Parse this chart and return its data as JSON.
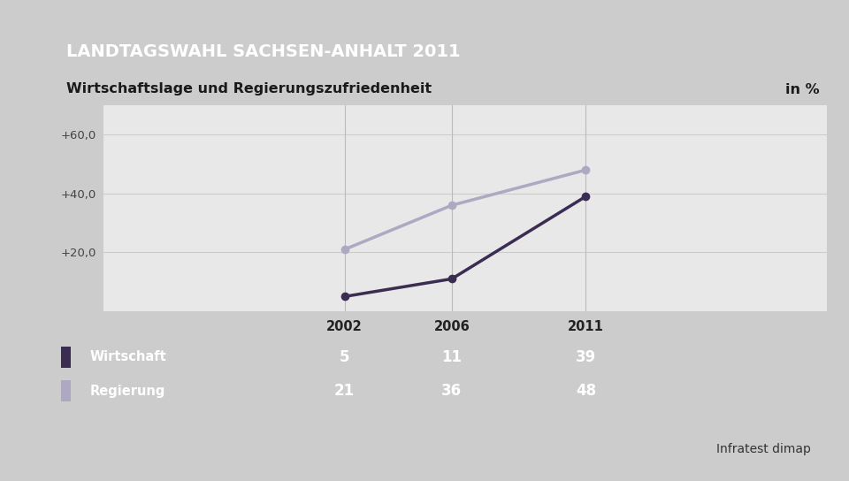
{
  "title_main": "LANDTAGSWAHL SACHSEN-ANHALT 2011",
  "subtitle": "Wirtschaftslage und Regierungszufriedenheit",
  "subtitle_right": "in %",
  "source": "Infratest dimap",
  "years": [
    2002,
    2006,
    2011
  ],
  "wirtschaft": [
    5,
    11,
    39
  ],
  "regierung": [
    21,
    36,
    48
  ],
  "wirtschaft_color": "#3b2c52",
  "regierung_color": "#aea8c2",
  "yticks": [
    20,
    40,
    60
  ],
  "ytick_labels": [
    "+20,0",
    "+40,0",
    "+60,0"
  ],
  "ylim": [
    0,
    70
  ],
  "header_bg": "#1a3a7a",
  "header_text_color": "#ffffff",
  "subtitle_bg": "#f5f5f5",
  "subtitle_text_color": "#1a1a1a",
  "table_header_bg": "#f0f0f0",
  "table_row_bg": "#4a82b4",
  "table_text_color": "#ffffff",
  "table_header_text_color": "#222222",
  "plot_bg": "#e8e8e8",
  "outer_bg": "#cccccc",
  "wirtschaft_swatch": "#3b2c52",
  "regierung_swatch": "#aea8c2"
}
